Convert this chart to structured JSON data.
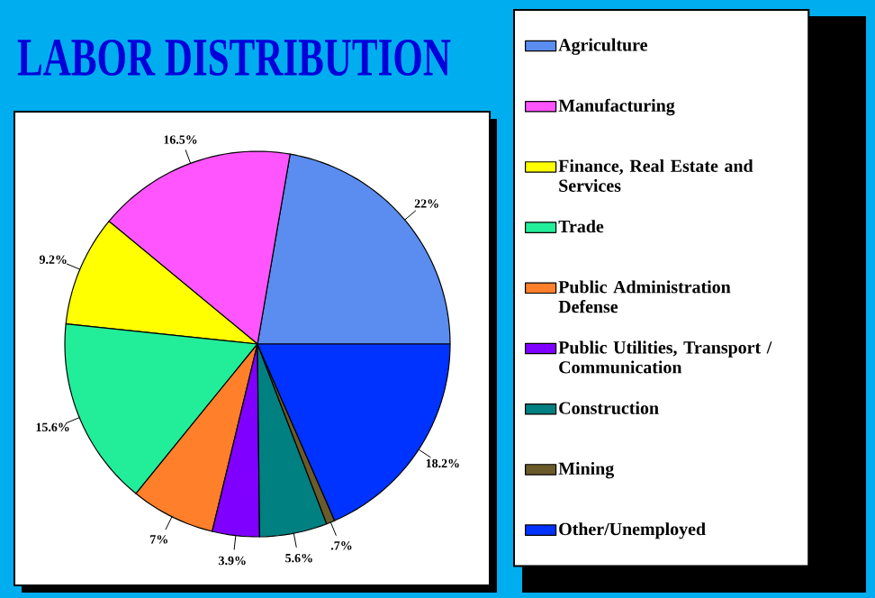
{
  "chart_data": {
    "type": "pie",
    "title": "LABOR DISTRIBUTION",
    "categories": [
      "Agriculture",
      "Manufacturing",
      "Finance, Real Estate and Services",
      "Trade",
      "Public Administration Defense",
      "Public Utilities, Transport / Communication",
      "Construction",
      "Mining",
      "Other/Unemployed"
    ],
    "values": [
      22,
      16.5,
      9.2,
      15.6,
      7,
      3.9,
      5.6,
      0.7,
      18.2
    ],
    "value_labels": [
      "22%",
      "16.5%",
      "9.2%",
      "15.6%",
      "7%",
      "3.9%",
      "5.6%",
      ".7%",
      "18.2%"
    ],
    "colors": [
      "#5b8cf0",
      "#ff55ff",
      "#ffff00",
      "#22ee99",
      "#ff7f2a",
      "#8000ff",
      "#008080",
      "#6b5a2a",
      "#0033ff"
    ],
    "legend": "right"
  }
}
